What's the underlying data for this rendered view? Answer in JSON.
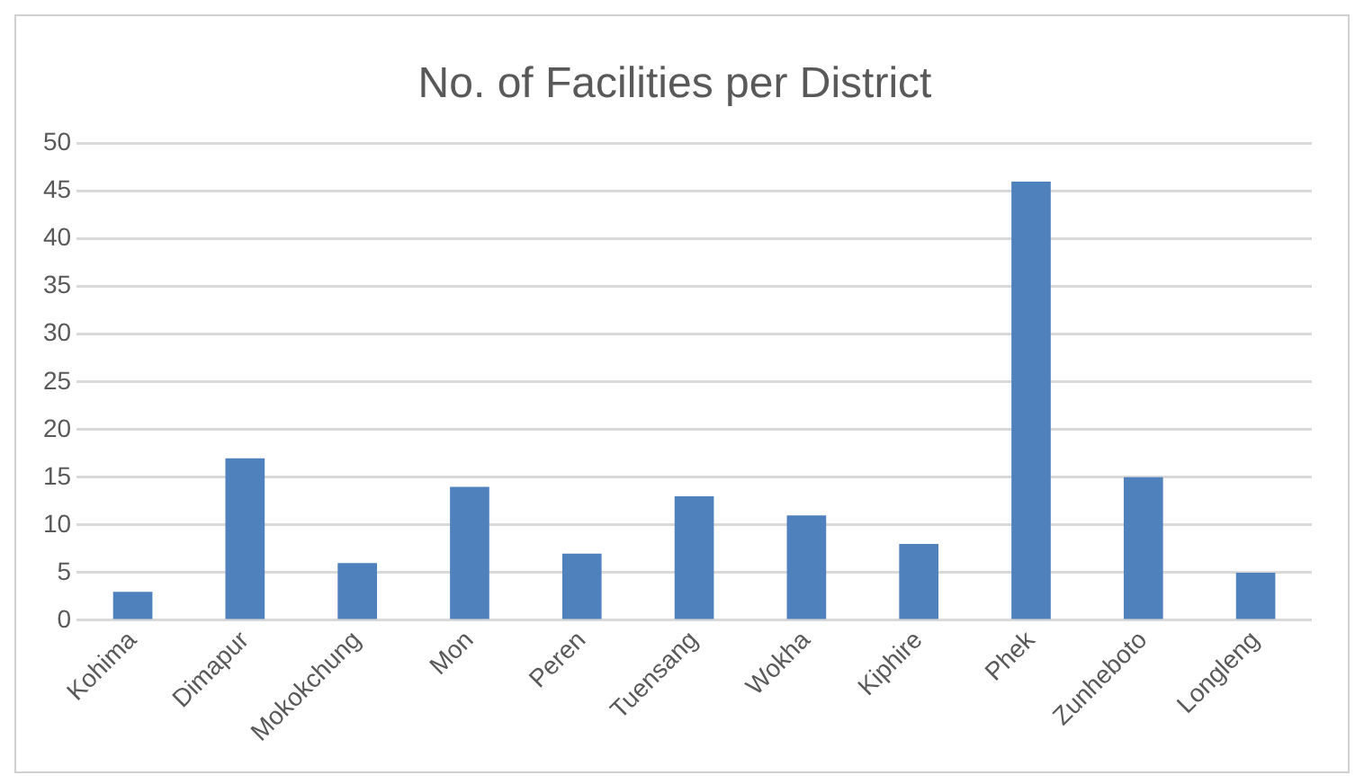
{
  "chart_data": {
    "type": "bar",
    "title": "No. of Facilities per District",
    "categories": [
      "Kohima",
      "Dimapur",
      "Mokokchung",
      "Mon",
      "Peren",
      "Tuensang",
      "Wokha",
      "Kiphire",
      "Phek",
      "Zunheboto",
      "Longleng"
    ],
    "values": [
      3,
      17,
      6,
      14,
      7,
      13,
      11,
      8,
      46,
      15,
      5
    ],
    "color": "#4f81bd",
    "ylim": [
      0,
      50
    ],
    "yticks": [
      0,
      5,
      10,
      15,
      20,
      25,
      30,
      35,
      40,
      45,
      50
    ],
    "grid": "y",
    "legend": false
  }
}
